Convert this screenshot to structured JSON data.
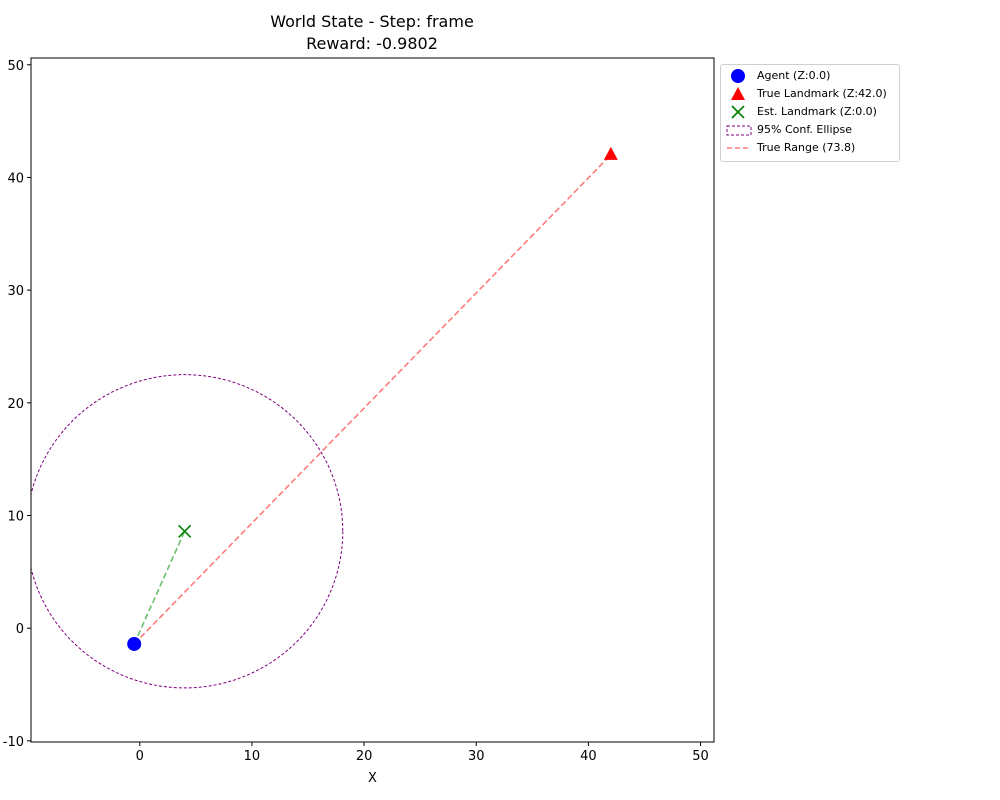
{
  "chart_data": {
    "type": "scatter",
    "title": "World State - Step: frame",
    "subtitle": "Reward: -0.9802",
    "xlabel": "X",
    "ylabel": "",
    "xlim": [
      -9.7,
      51.2
    ],
    "ylim": [
      -10.1,
      50.6
    ],
    "xticks": [
      0,
      10,
      20,
      30,
      40,
      50
    ],
    "yticks": [
      -10,
      0,
      10,
      20,
      30,
      40,
      50
    ],
    "grid": false,
    "legend_position": "outside-top-right",
    "points": {
      "agent": {
        "x": -0.5,
        "y": -1.4,
        "color": "#0000ff",
        "marker": "circle"
      },
      "true_landmark": {
        "x": 42.0,
        "y": 42.0,
        "color": "#ff0000",
        "marker": "triangle"
      },
      "est_landmark": {
        "x": 4.0,
        "y": 8.6,
        "color": "#008000",
        "marker": "x"
      }
    },
    "ellipse": {
      "cx": 4.0,
      "cy": 8.6,
      "rx": 14.1,
      "ry": 13.9,
      "color": "#800080"
    },
    "lines": [
      {
        "from": "agent",
        "to": "true_landmark",
        "color": "#ff7b7b",
        "style": "dashed"
      },
      {
        "from": "agent",
        "to": "est_landmark",
        "color": "#6cbf6c",
        "style": "dashed"
      }
    ],
    "legend": [
      {
        "label": "Agent (Z:0.0)",
        "marker": "circle",
        "color": "#0000ff"
      },
      {
        "label": "True Landmark (Z:42.0)",
        "marker": "triangle",
        "color": "#ff0000"
      },
      {
        "label": "Est. Landmark (Z:0.0)",
        "marker": "x",
        "color": "#008000"
      },
      {
        "label": "95% Conf. Ellipse",
        "marker": "ellipse-patch",
        "color": "#800080"
      },
      {
        "label": "True Range (73.8)",
        "marker": "dashed-line",
        "color": "#ff7b7b"
      }
    ]
  }
}
